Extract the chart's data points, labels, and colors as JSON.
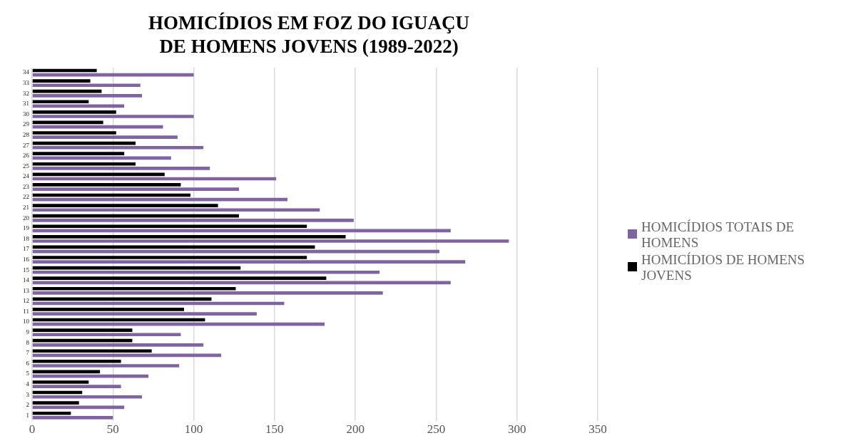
{
  "chart_data": {
    "type": "bar",
    "orientation": "horizontal",
    "title": "HOMICÍDIOS EM FOZ DO IGUAÇU\nDE HOMENS JOVENS (1989-2022)",
    "categories": [
      "34",
      "33",
      "32",
      "31",
      "30",
      "29",
      "28",
      "27",
      "26",
      "25",
      "24",
      "23",
      "22",
      "21",
      "20",
      "19",
      "18",
      "17",
      "16",
      "15",
      "14",
      "13",
      "12",
      "11",
      "10",
      "9",
      "8",
      "7",
      "6",
      "5",
      "4",
      "3",
      "2",
      "1"
    ],
    "series": [
      {
        "name": "HOMICÍDIOS TOTAIS DE HOMENS",
        "color": "#8064a2",
        "values": [
          100,
          67,
          68,
          57,
          100,
          81,
          90,
          106,
          86,
          110,
          151,
          128,
          158,
          178,
          199,
          259,
          295,
          252,
          268,
          215,
          259,
          217,
          156,
          139,
          181,
          92,
          106,
          117,
          91,
          72,
          55,
          68,
          57,
          50
        ]
      },
      {
        "name": "HOMICÍDIOS DE HOMENS JOVENS",
        "color": "#000000",
        "values": [
          40,
          36,
          43,
          35,
          52,
          44,
          52,
          64,
          57,
          64,
          82,
          92,
          98,
          115,
          128,
          170,
          194,
          175,
          170,
          129,
          182,
          126,
          111,
          94,
          107,
          62,
          62,
          74,
          55,
          42,
          35,
          31,
          29,
          24
        ]
      }
    ],
    "xlim": [
      0,
      350
    ],
    "xticks": [
      0,
      50,
      100,
      150,
      200,
      250,
      300,
      350
    ],
    "grid": "x",
    "legend": "right"
  }
}
